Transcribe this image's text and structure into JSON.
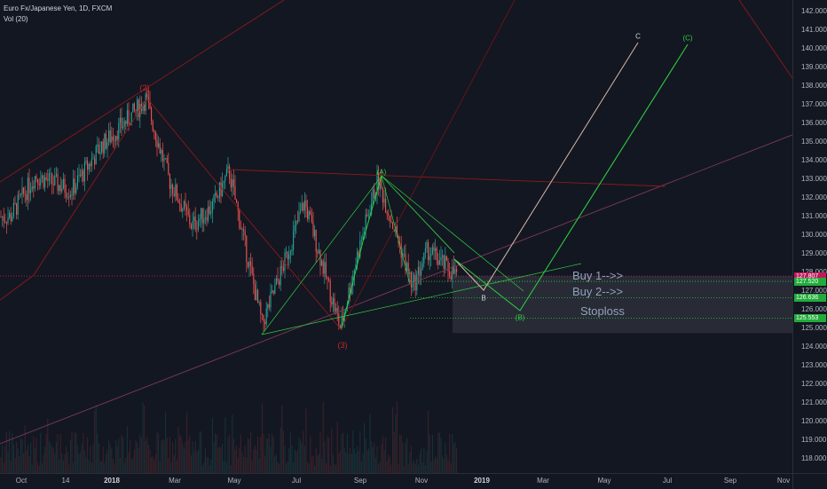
{
  "legend": {
    "symbol": "Euro Fx/Japanese Yen, 1D, FXCM",
    "volume": "Vol (20)"
  },
  "price_axis": {
    "labels": [
      "142.000",
      "141.000",
      "140.000",
      "139.000",
      "138.000",
      "137.000",
      "136.000",
      "135.000",
      "134.000",
      "133.000",
      "132.000",
      "131.000",
      "130.000",
      "129.000",
      "128.000",
      "127.000",
      "126.000",
      "125.000",
      "124.000",
      "123.000",
      "122.000",
      "121.000",
      "120.000",
      "119.000",
      "118.000"
    ],
    "tags": [
      {
        "text": "127.807",
        "color": "#c2185b"
      },
      {
        "text": "127.520",
        "color": "#22ab3b"
      },
      {
        "text": "126.636",
        "color": "#22ab3b"
      },
      {
        "text": "125.553",
        "color": "#22ab3b"
      }
    ]
  },
  "time_axis": {
    "labels": [
      {
        "text": "Oct",
        "strong": false
      },
      {
        "text": "14",
        "strong": false
      },
      {
        "text": "2018",
        "strong": true
      },
      {
        "text": "Mar",
        "strong": false
      },
      {
        "text": "May",
        "strong": false
      },
      {
        "text": "Jul",
        "strong": false
      },
      {
        "text": "Sep",
        "strong": false
      },
      {
        "text": "Nov",
        "strong": false
      },
      {
        "text": "2019",
        "strong": true
      },
      {
        "text": "Mar",
        "strong": false
      },
      {
        "text": "May",
        "strong": false
      },
      {
        "text": "Jul",
        "strong": false
      },
      {
        "text": "Sep",
        "strong": false
      },
      {
        "text": "Nov",
        "strong": false
      }
    ]
  },
  "annotations": {
    "buy1": "Buy 1-->>",
    "buy2": "Buy 2-->>",
    "stoploss": "Stoploss",
    "wave2": "(2)",
    "wave3": "(3)",
    "waveA": "(A)",
    "waveB": "(B)",
    "waveC": "(C)",
    "alt_b": "B",
    "alt_c": "C"
  },
  "colors": {
    "background": "#131722",
    "up": "#26a69a",
    "down": "#ef5350",
    "wave_red": "#8b1a1a",
    "wave_green": "#2ecc40",
    "alt_path": "#d9b8a8",
    "zone": "#3a3d47"
  },
  "chart_data": {
    "type": "candlestick",
    "symbol": "Euro Fx/Japanese Yen",
    "interval": "1D",
    "ylim": [
      118,
      142
    ],
    "key_prices": {
      "current": 127.807,
      "buy_1": 127.52,
      "buy_2": 126.636,
      "stoploss": 125.553
    },
    "price_path": [
      {
        "date": "2017-09-20",
        "close": 131.0
      },
      {
        "date": "2017-10-15",
        "close": 133.2
      },
      {
        "date": "2017-11-20",
        "close": 132.4
      },
      {
        "date": "2017-12-20",
        "close": 134.8
      },
      {
        "date": "2018-01-15",
        "close": 136.2
      },
      {
        "date": "2018-02-02",
        "close": 137.3
      },
      {
        "date": "2018-02-25",
        "close": 133.0
      },
      {
        "date": "2018-03-20",
        "close": 130.5
      },
      {
        "date": "2018-04-10",
        "close": 131.6
      },
      {
        "date": "2018-04-26",
        "close": 133.4
      },
      {
        "date": "2018-05-29",
        "close": 125.2
      },
      {
        "date": "2018-06-20",
        "close": 128.5
      },
      {
        "date": "2018-07-10",
        "close": 131.8
      },
      {
        "date": "2018-07-25",
        "close": 129.0
      },
      {
        "date": "2018-08-15",
        "close": 125.0
      },
      {
        "date": "2018-09-01",
        "close": 129.0
      },
      {
        "date": "2018-09-21",
        "close": 133.0
      },
      {
        "date": "2018-10-10",
        "close": 130.0
      },
      {
        "date": "2018-10-26",
        "close": 127.2
      },
      {
        "date": "2018-11-10",
        "close": 129.2
      },
      {
        "date": "2018-11-30",
        "close": 128.2
      },
      {
        "date": "2018-12-10",
        "close": 127.8
      }
    ]
  }
}
